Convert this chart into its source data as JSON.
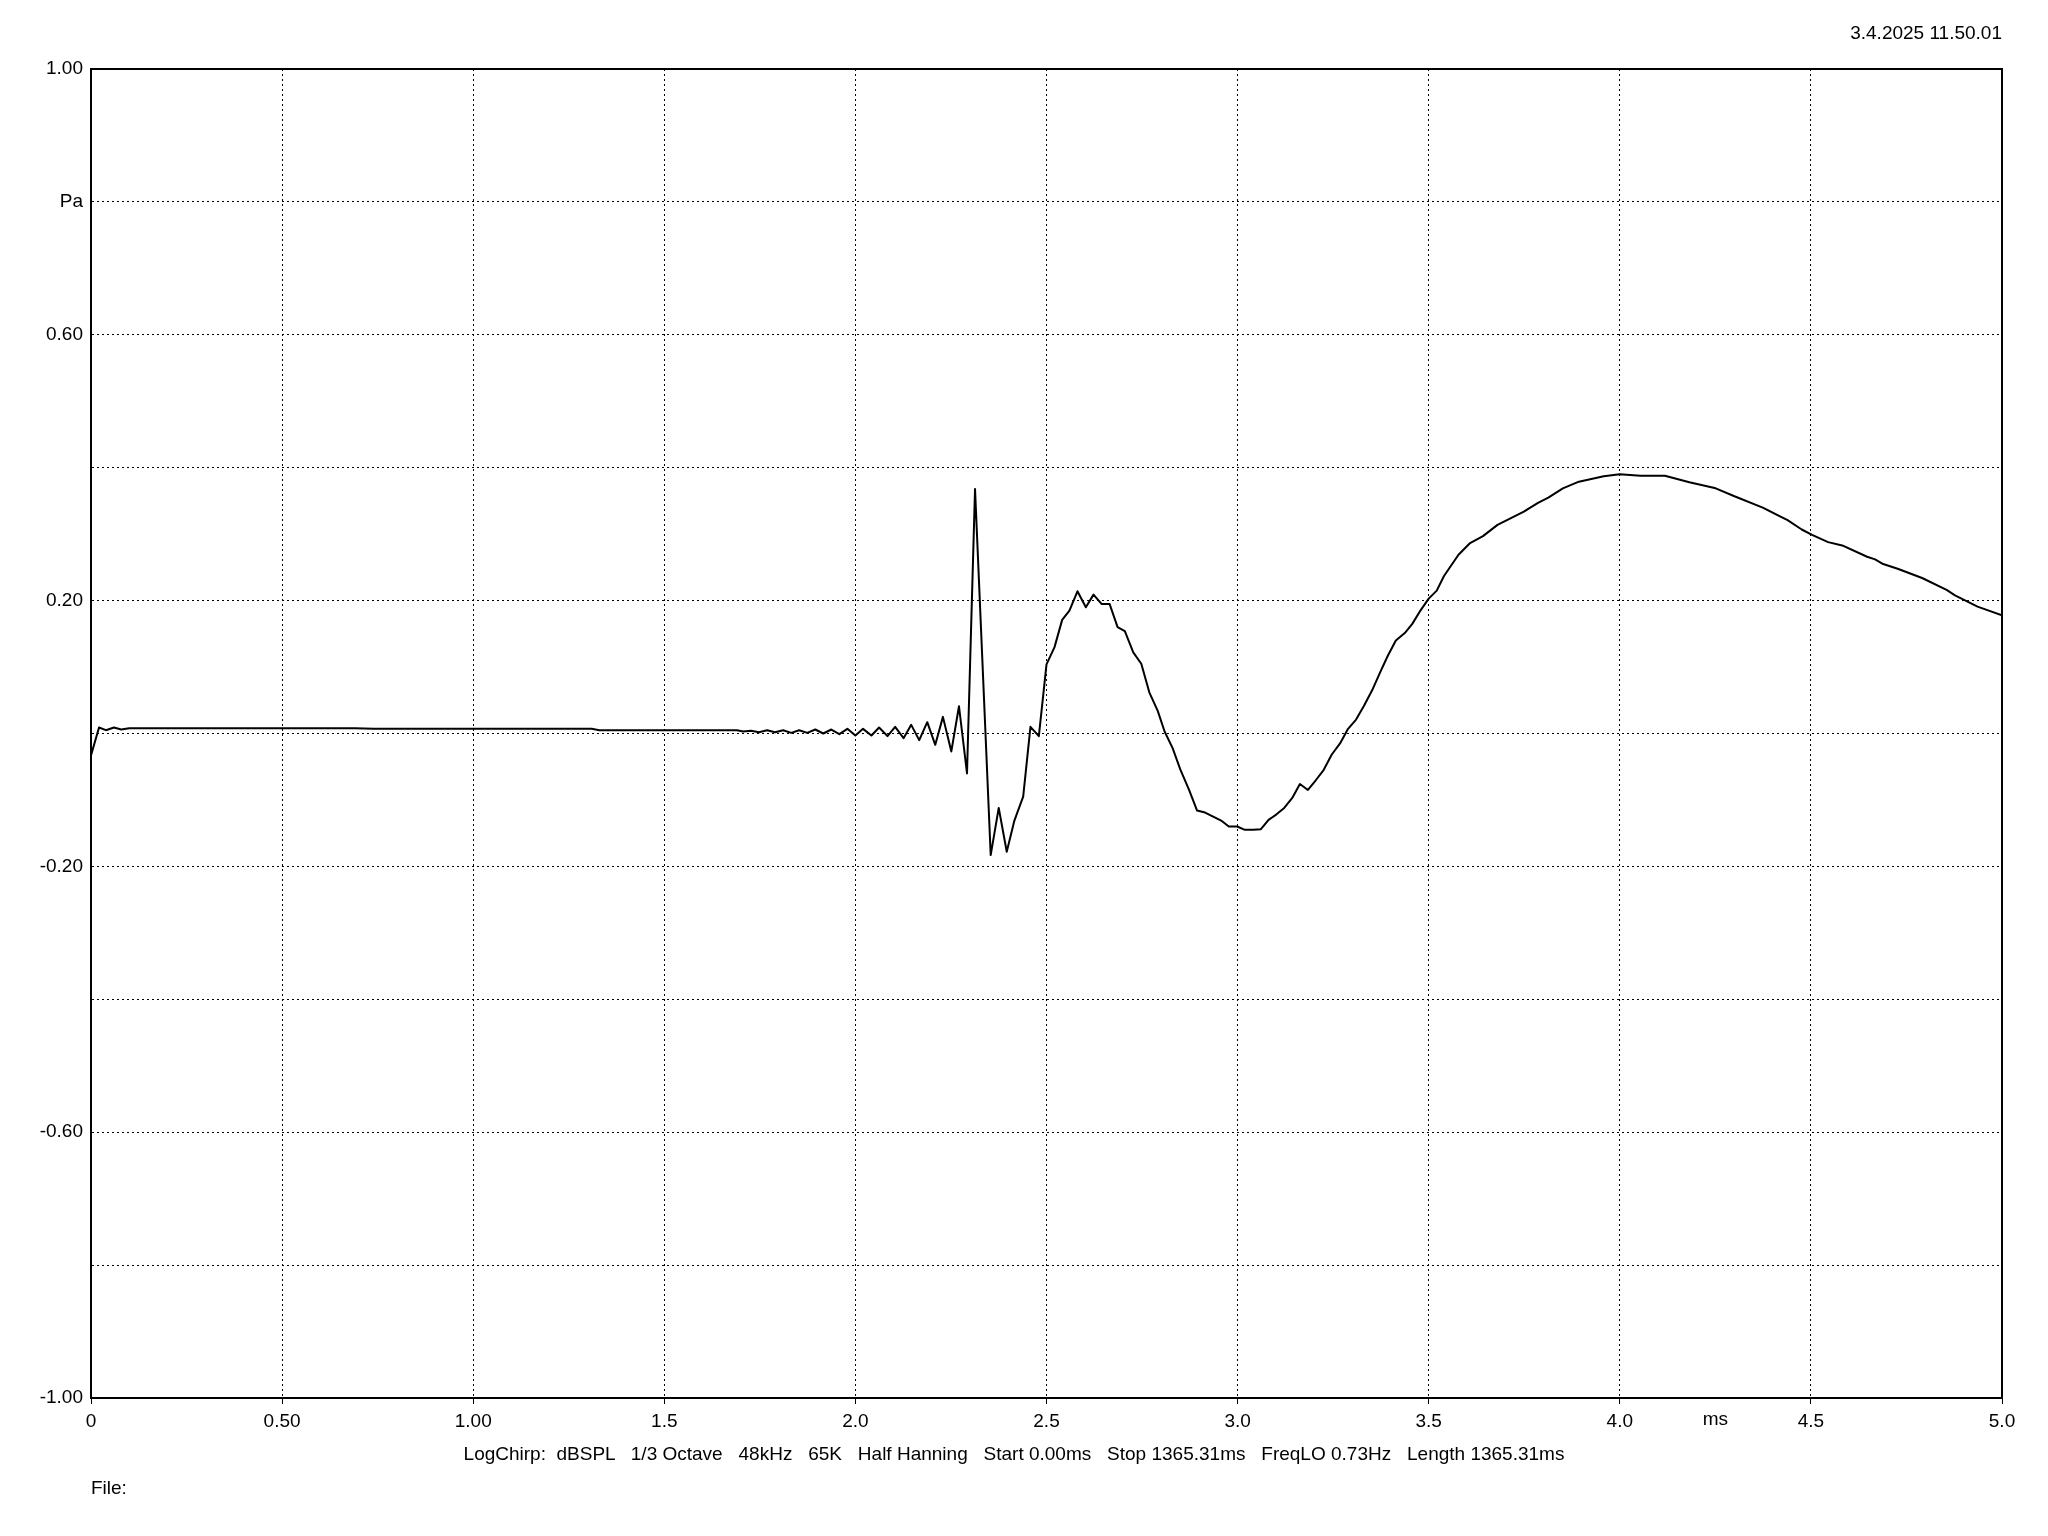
{
  "chart_data": {
    "type": "line",
    "subtitle": "3.4.2025 11.50.01",
    "xlabel": "ms",
    "ylabel": "Pa",
    "annotations": [
      "LogChirp:  dBSPL   1/3 Octave   48kHz   65K   Half Hanning   Start 0.00ms   Stop 1365.31ms   FreqLO 0.73Hz   Length 1365.31ms",
      "File:"
    ],
    "x": [
      0,
      0.021,
      0.039,
      0.06,
      0.079,
      0.1,
      0.69,
      0.74,
      1.31,
      1.33,
      1.69,
      1.706,
      1.727,
      1.748,
      1.769,
      1.79,
      1.811,
      1.832,
      1.853,
      1.874,
      1.895,
      1.916,
      1.937,
      1.958,
      1.979,
      2.0,
      2.02,
      2.042,
      2.062,
      2.084,
      2.104,
      2.126,
      2.146,
      2.167,
      2.188,
      2.209,
      2.229,
      2.251,
      2.271,
      2.292,
      2.313,
      2.354,
      2.375,
      2.396,
      2.416,
      2.439,
      2.458,
      2.48,
      2.5,
      2.521,
      2.541,
      2.56,
      2.581,
      2.603,
      2.623,
      2.644,
      2.665,
      2.686,
      2.705,
      2.727,
      2.748,
      2.769,
      2.791,
      2.809,
      2.83,
      2.85,
      2.873,
      2.894,
      2.915,
      2.936,
      2.957,
      2.977,
      2.999,
      3.019,
      3.041,
      3.061,
      3.081,
      3.101,
      3.122,
      3.143,
      3.163,
      3.184,
      3.205,
      3.225,
      3.246,
      3.268,
      3.289,
      3.31,
      3.33,
      3.352,
      3.372,
      3.393,
      3.414,
      3.439,
      3.457,
      3.476,
      3.5,
      3.521,
      3.54,
      3.578,
      3.607,
      3.642,
      3.68,
      3.749,
      3.786,
      3.813,
      3.851,
      3.893,
      3.958,
      4.0,
      4.054,
      4.118,
      4.182,
      4.251,
      4.3,
      4.374,
      4.439,
      4.476,
      4.503,
      4.545,
      4.582,
      4.647,
      4.668,
      4.689,
      4.727,
      4.791,
      4.855,
      4.877,
      4.936,
      5.0
    ],
    "series": [
      {
        "color": "#000000",
        "values": [
          -0.033,
          0.009,
          0.005,
          0.009,
          0.006,
          0.008,
          0.008,
          0.007,
          0.007,
          0.005,
          0.005,
          0.003,
          0.004,
          0.002,
          0.005,
          0.002,
          0.005,
          0.001,
          0.005,
          0.001,
          0.006,
          0.0,
          0.006,
          -0.001,
          0.007,
          -0.003,
          0.007,
          -0.003,
          0.009,
          -0.004,
          0.01,
          -0.007,
          0.013,
          -0.01,
          0.017,
          -0.017,
          0.025,
          -0.027,
          0.041,
          -0.06,
          0.368,
          -0.183,
          -0.112,
          -0.178,
          -0.131,
          -0.095,
          0.01,
          -0.004,
          0.104,
          0.13,
          0.171,
          0.185,
          0.214,
          0.19,
          0.209,
          0.195,
          0.195,
          0.16,
          0.154,
          0.122,
          0.105,
          0.062,
          0.034,
          0.003,
          -0.022,
          -0.054,
          -0.085,
          -0.116,
          -0.119,
          -0.125,
          -0.131,
          -0.14,
          -0.14,
          -0.145,
          -0.145,
          -0.144,
          -0.13,
          -0.122,
          -0.112,
          -0.097,
          -0.076,
          -0.085,
          -0.07,
          -0.055,
          -0.032,
          -0.015,
          0.007,
          0.021,
          0.041,
          0.065,
          0.091,
          0.117,
          0.14,
          0.152,
          0.165,
          0.183,
          0.203,
          0.215,
          0.237,
          0.269,
          0.286,
          0.297,
          0.314,
          0.334,
          0.347,
          0.355,
          0.369,
          0.379,
          0.387,
          0.39,
          0.388,
          0.388,
          0.378,
          0.369,
          0.357,
          0.34,
          0.321,
          0.307,
          0.299,
          0.288,
          0.283,
          0.266,
          0.262,
          0.255,
          0.248,
          0.234,
          0.216,
          0.208,
          0.191,
          0.178
        ]
      }
    ],
    "xlim": [
      0,
      5
    ],
    "ylim": [
      -1,
      1
    ],
    "xticks": [
      0,
      {
        "value": 0.5,
        "label": "0.50"
      },
      {
        "value": 1,
        "label": "1.00"
      },
      1.5,
      {
        "value": 2,
        "label": "2.0"
      },
      2.5,
      {
        "value": 3,
        "label": "3.0"
      },
      3.5,
      {
        "value": 4,
        "label": "4.0"
      },
      4.5,
      {
        "value": 5,
        "label": "5.0"
      }
    ],
    "yticks": [
      {
        "value": 1,
        "label": "1.00"
      },
      {
        "value": 0.8,
        "label": null
      },
      {
        "value": 0.6,
        "label": "0.60"
      },
      {
        "value": 0.4,
        "label": null
      },
      {
        "value": 0.2,
        "label": "0.20"
      },
      {
        "value": 0,
        "label": null
      },
      {
        "value": -0.2,
        "label": "-0.20"
      },
      {
        "value": -0.4,
        "label": null
      },
      {
        "value": -0.6,
        "label": "-0.60"
      },
      {
        "value": -0.8,
        "label": null
      },
      {
        "value": -1,
        "label": "-1.00"
      }
    ],
    "grid": true,
    "legend": false,
    "marker": "none",
    "line_style": "solid"
  }
}
